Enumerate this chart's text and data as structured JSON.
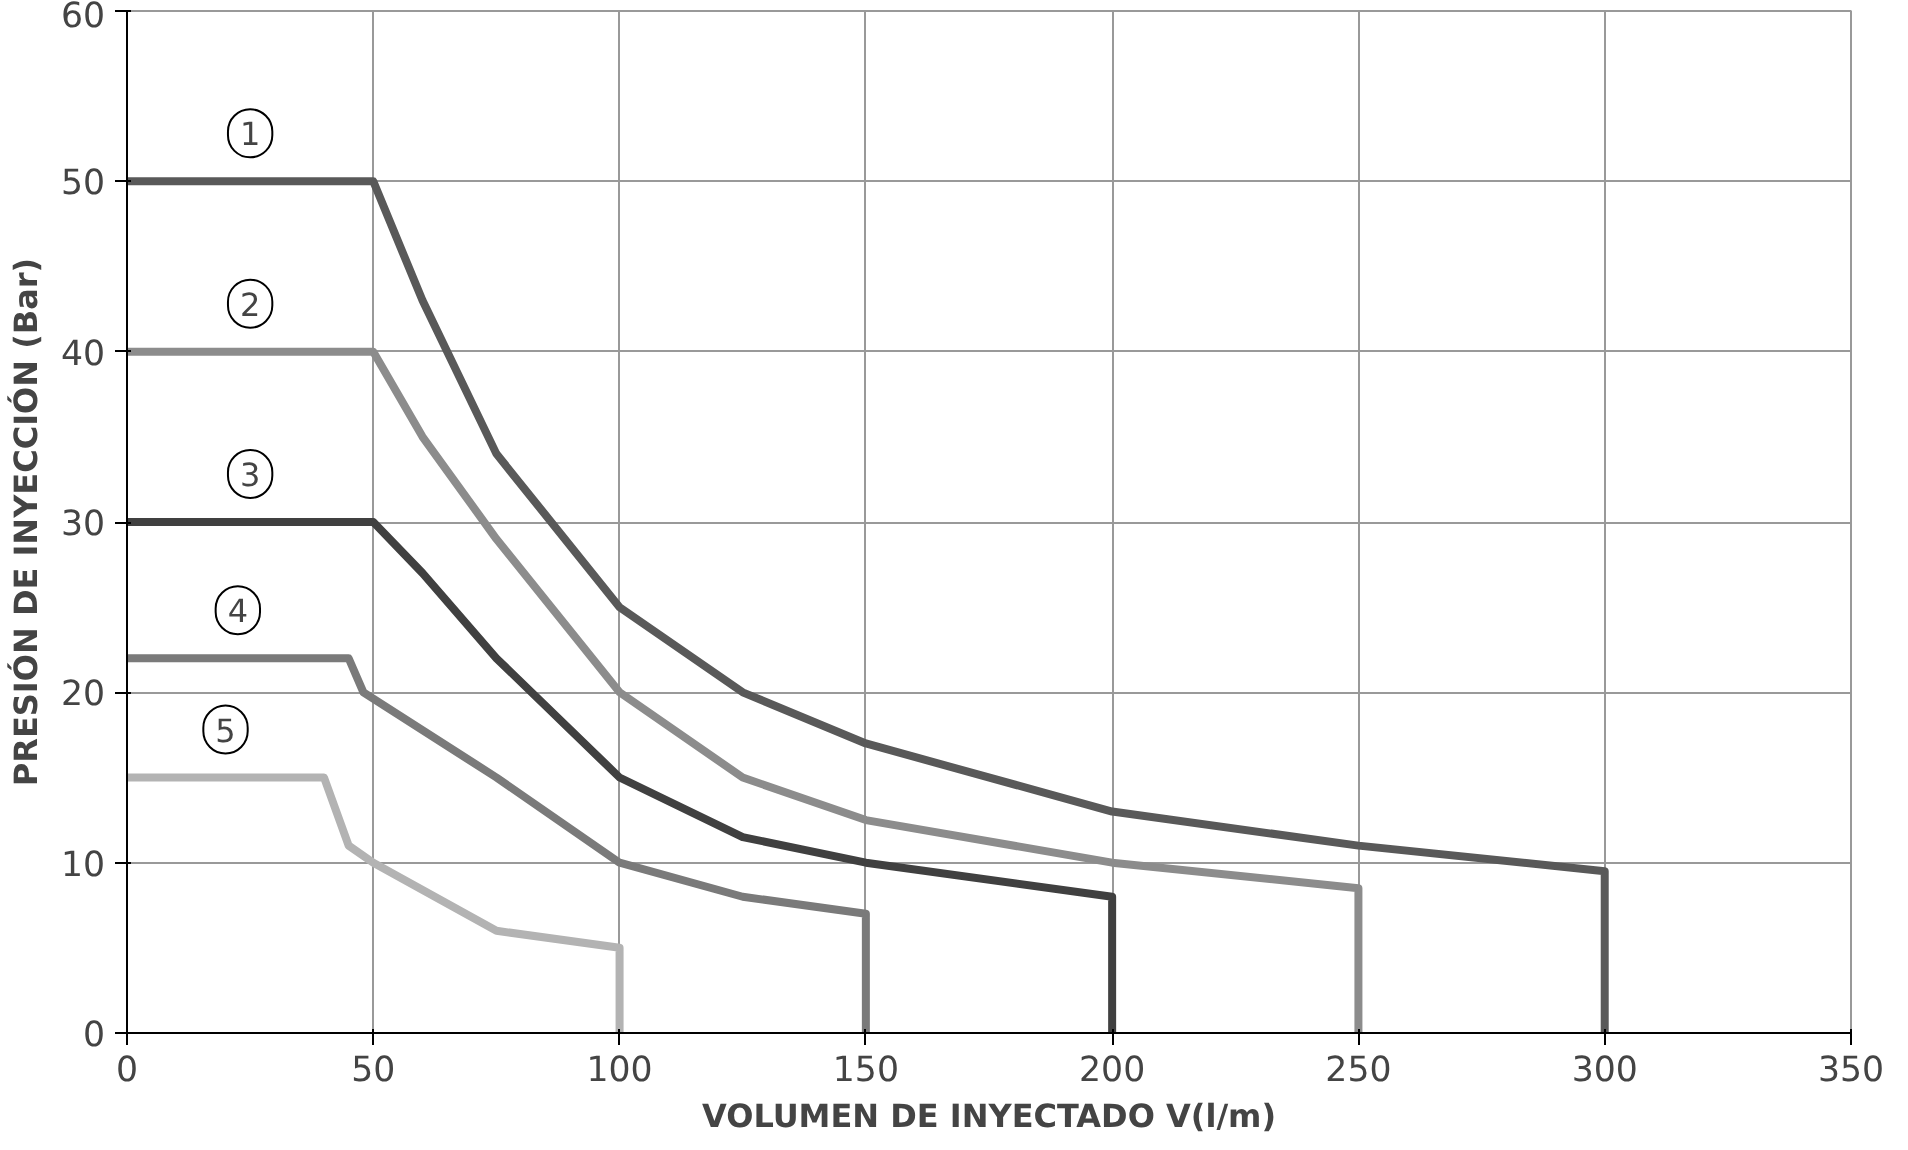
{
  "chart_data": {
    "type": "line",
    "xlabel": "VOLUMEN DE INYECTADO V(l/m)",
    "ylabel": "PRESIÓN DE INYECCIÓN (Bar)",
    "xlim": [
      0,
      350
    ],
    "ylim": [
      0,
      60
    ],
    "xticks": [
      0,
      50,
      100,
      150,
      200,
      250,
      300,
      350
    ],
    "yticks": [
      0,
      10,
      20,
      30,
      40,
      50,
      60
    ],
    "grid": true,
    "series": [
      {
        "name": "1",
        "color": "#595959",
        "x": [
          0,
          50,
          60,
          75,
          100,
          125,
          150,
          200,
          250,
          300,
          300
        ],
        "values": [
          50,
          50,
          43,
          34,
          25,
          20,
          17,
          13,
          11,
          9.5,
          0
        ]
      },
      {
        "name": "2",
        "color": "#8c8c8c",
        "x": [
          0,
          50,
          60,
          75,
          100,
          125,
          150,
          200,
          250,
          250
        ],
        "values": [
          40,
          40,
          35,
          29,
          20,
          15,
          12.5,
          10,
          8.5,
          0
        ]
      },
      {
        "name": "3",
        "color": "#404040",
        "x": [
          0,
          50,
          60,
          75,
          100,
          125,
          150,
          200,
          200
        ],
        "values": [
          30,
          30,
          27,
          22,
          15,
          11.5,
          10,
          8,
          0
        ]
      },
      {
        "name": "4",
        "color": "#7a7a7a",
        "x": [
          0,
          45,
          48,
          75,
          100,
          125,
          150,
          150
        ],
        "values": [
          22,
          22,
          20,
          15,
          10,
          8,
          7,
          0
        ]
      },
      {
        "name": "5",
        "color": "#b3b3b3",
        "x": [
          0,
          40,
          45,
          50,
          75,
          100,
          100
        ],
        "values": [
          15,
          15,
          11,
          10,
          6,
          5,
          0
        ]
      }
    ]
  }
}
